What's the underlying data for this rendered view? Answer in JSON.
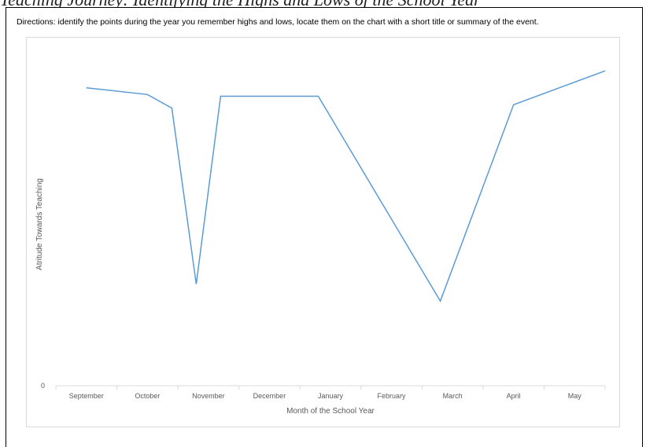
{
  "header": {
    "top_caption": "Teaching Journey: Identifying the Highs and Lows of the School Year",
    "directions": "Directions: identify the points during the year you remember highs and lows, locate them on the chart with a short title or summary of the event."
  },
  "chart_data": {
    "type": "line",
    "title": "",
    "xlabel": "Month of the School Year",
    "ylabel": "Atritude Towards Teaching",
    "categories": [
      "September",
      "October",
      "November",
      "December",
      "January",
      "February",
      "March",
      "April",
      "May"
    ],
    "x": [
      0,
      1,
      1.4,
      1.8,
      2.2,
      3.8,
      5.8,
      7,
      8.5
    ],
    "series": [
      {
        "values": [
          88,
          86,
          82,
          30,
          85.5,
          85.5,
          25,
          83,
          93
        ]
      }
    ],
    "y_tick_labels": [
      "0"
    ],
    "ylim": [
      0,
      100
    ],
    "grid": false,
    "line_color": "#5B9BD5"
  }
}
